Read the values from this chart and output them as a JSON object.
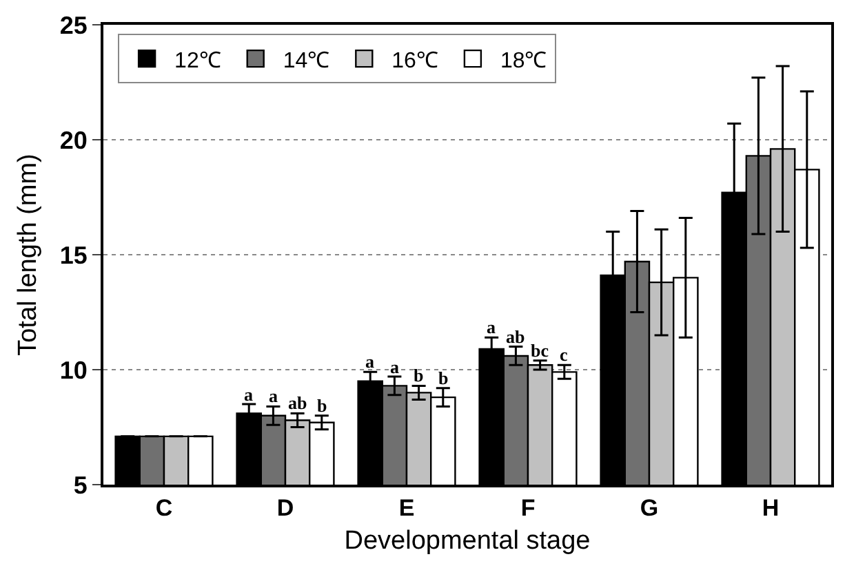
{
  "chart_data": {
    "type": "bar",
    "xlabel": "Developmental stage",
    "ylabel": "Total length (mm)",
    "categories": [
      "C",
      "D",
      "E",
      "F",
      "G",
      "H"
    ],
    "series": [
      {
        "name": "12℃",
        "color": "#000000",
        "values": [
          7.1,
          8.1,
          9.5,
          10.9,
          14.1,
          17.7
        ],
        "errors": [
          null,
          0.4,
          0.4,
          0.5,
          1.9,
          3.0
        ],
        "value_labels": [
          null,
          "a",
          "a",
          "a",
          null,
          null
        ]
      },
      {
        "name": "14℃",
        "color": "#707070",
        "values": [
          7.1,
          8.0,
          9.3,
          10.6,
          14.7,
          19.3
        ],
        "errors": [
          null,
          0.4,
          0.4,
          0.4,
          2.2,
          3.4
        ],
        "value_labels": [
          null,
          "a",
          "a",
          "ab",
          null,
          null
        ]
      },
      {
        "name": "16℃",
        "color": "#c0c0c0",
        "values": [
          7.1,
          7.8,
          9.0,
          10.2,
          13.8,
          19.6
        ],
        "errors": [
          null,
          0.3,
          0.3,
          0.2,
          2.3,
          3.6
        ],
        "value_labels": [
          null,
          "ab",
          "b",
          "bc",
          null,
          null
        ]
      },
      {
        "name": "18℃",
        "color": "#ffffff",
        "values": [
          7.1,
          7.7,
          8.8,
          9.9,
          14.0,
          18.7
        ],
        "errors": [
          null,
          0.3,
          0.4,
          0.3,
          2.6,
          3.4
        ],
        "value_labels": [
          null,
          "b",
          "b",
          "c",
          null,
          null
        ]
      }
    ],
    "ylim": [
      5,
      25
    ],
    "yticks": [
      5,
      10,
      15,
      20,
      25
    ],
    "grid": "y",
    "legend": "top left"
  }
}
